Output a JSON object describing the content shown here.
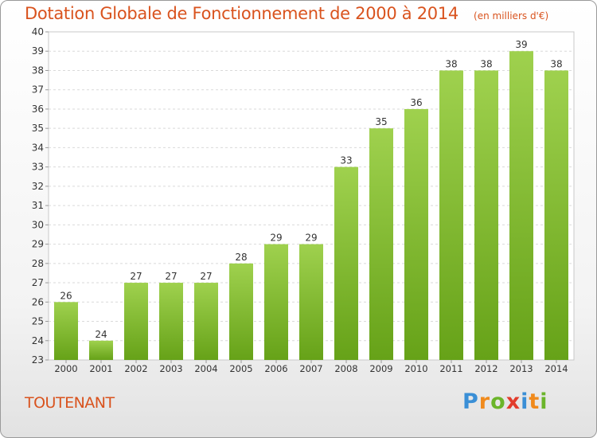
{
  "chart_data": {
    "type": "bar",
    "title": "Dotation Globale de Fonctionnement de 2000 à 2014",
    "subtitle": "(en milliers d'€)",
    "categories": [
      "2000",
      "2001",
      "2002",
      "2003",
      "2004",
      "2005",
      "2006",
      "2007",
      "2008",
      "2009",
      "2010",
      "2011",
      "2012",
      "2013",
      "2014"
    ],
    "values": [
      26,
      24,
      27,
      27,
      27,
      28,
      29,
      29,
      33,
      35,
      36,
      38,
      38,
      39,
      38
    ],
    "ylim": [
      23,
      40
    ],
    "yticks": [
      23,
      24,
      25,
      26,
      27,
      28,
      29,
      30,
      31,
      32,
      33,
      34,
      35,
      36,
      37,
      38,
      39,
      40
    ],
    "grid": true,
    "colors": {
      "bar_light": "#9fd14e",
      "bar_dark": "#66a218",
      "title": "#d9531e"
    }
  },
  "footer": {
    "commune": "TOUTENANT"
  },
  "logo": {
    "letters": [
      "P",
      "r",
      "o",
      "x",
      "i",
      "t",
      "i"
    ],
    "colors": [
      "#3a8fd6",
      "#f08a1c",
      "#6bb52a",
      "#e23c2c",
      "#3a8fd6",
      "#f08a1c",
      "#6bb52a"
    ]
  }
}
